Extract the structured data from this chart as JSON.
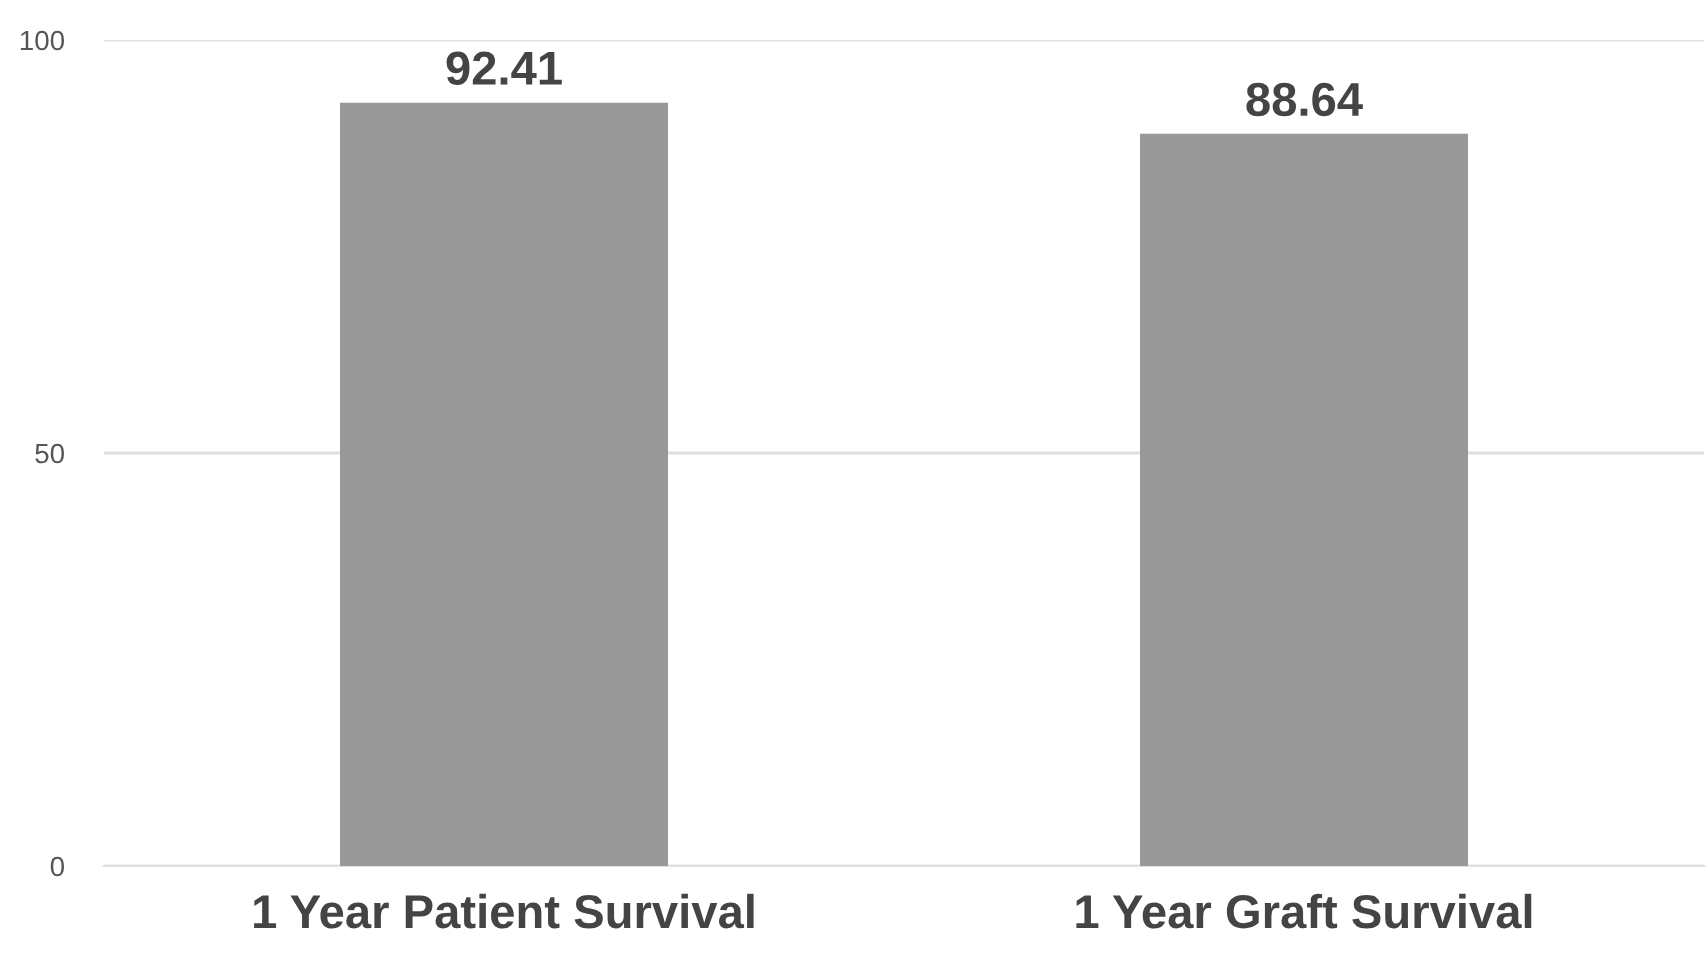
{
  "chart_data": {
    "type": "bar",
    "categories": [
      "1 Year Patient Survival",
      "1 Year Graft Survival"
    ],
    "values": [
      92.41,
      88.64
    ],
    "color": "#999999",
    "ylim": [
      0,
      100
    ],
    "yticks": [
      0,
      50,
      100
    ],
    "grid": "y",
    "data_labels": true
  }
}
